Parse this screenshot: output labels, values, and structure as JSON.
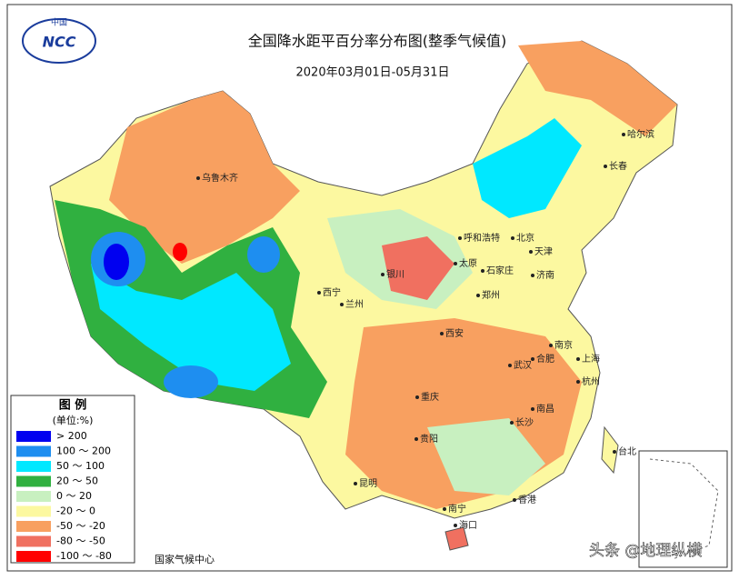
{
  "logo": {
    "top": "中国",
    "center": "NCC"
  },
  "header": {
    "title": "全国降水距平百分率分布图(整季气候值)",
    "subtitle": "2020年03月01日-05月31日"
  },
  "legend": {
    "title": "图 例",
    "unit": "(单位:%)",
    "items": [
      {
        "label": "> 200",
        "color": "#0000f0"
      },
      {
        "label": "100 ～ 200",
        "color": "#1e8ef0"
      },
      {
        "label": "50 ～ 100",
        "color": "#00e8ff"
      },
      {
        "label": "20 ～ 50",
        "color": "#30b040"
      },
      {
        "label": "0 ～ 20",
        "color": "#c8f0c0"
      },
      {
        "label": "-20 ～ 0",
        "color": "#fcf8a0"
      },
      {
        "label": "-50 ～ -20",
        "color": "#f8a060"
      },
      {
        "label": "-80 ～ -50",
        "color": "#f07060"
      },
      {
        "label": "-100 ～ -80",
        "color": "#ff0000"
      }
    ]
  },
  "cities": [
    "乌鲁木齐",
    "西宁",
    "兰州",
    "银川",
    "呼和浩特",
    "北京",
    "天津",
    "石家庄",
    "太原",
    "济南",
    "郑州",
    "西安",
    "重庆",
    "武汉",
    "合肥",
    "南京",
    "上海",
    "杭州",
    "长沙",
    "南昌",
    "贵阳",
    "昆明",
    "南宁",
    "香港",
    "海口",
    "台北",
    "长春",
    "哈尔滨"
  ],
  "footer": {
    "source": "国家气候中心",
    "watermark": "头条 @地理纵横"
  }
}
